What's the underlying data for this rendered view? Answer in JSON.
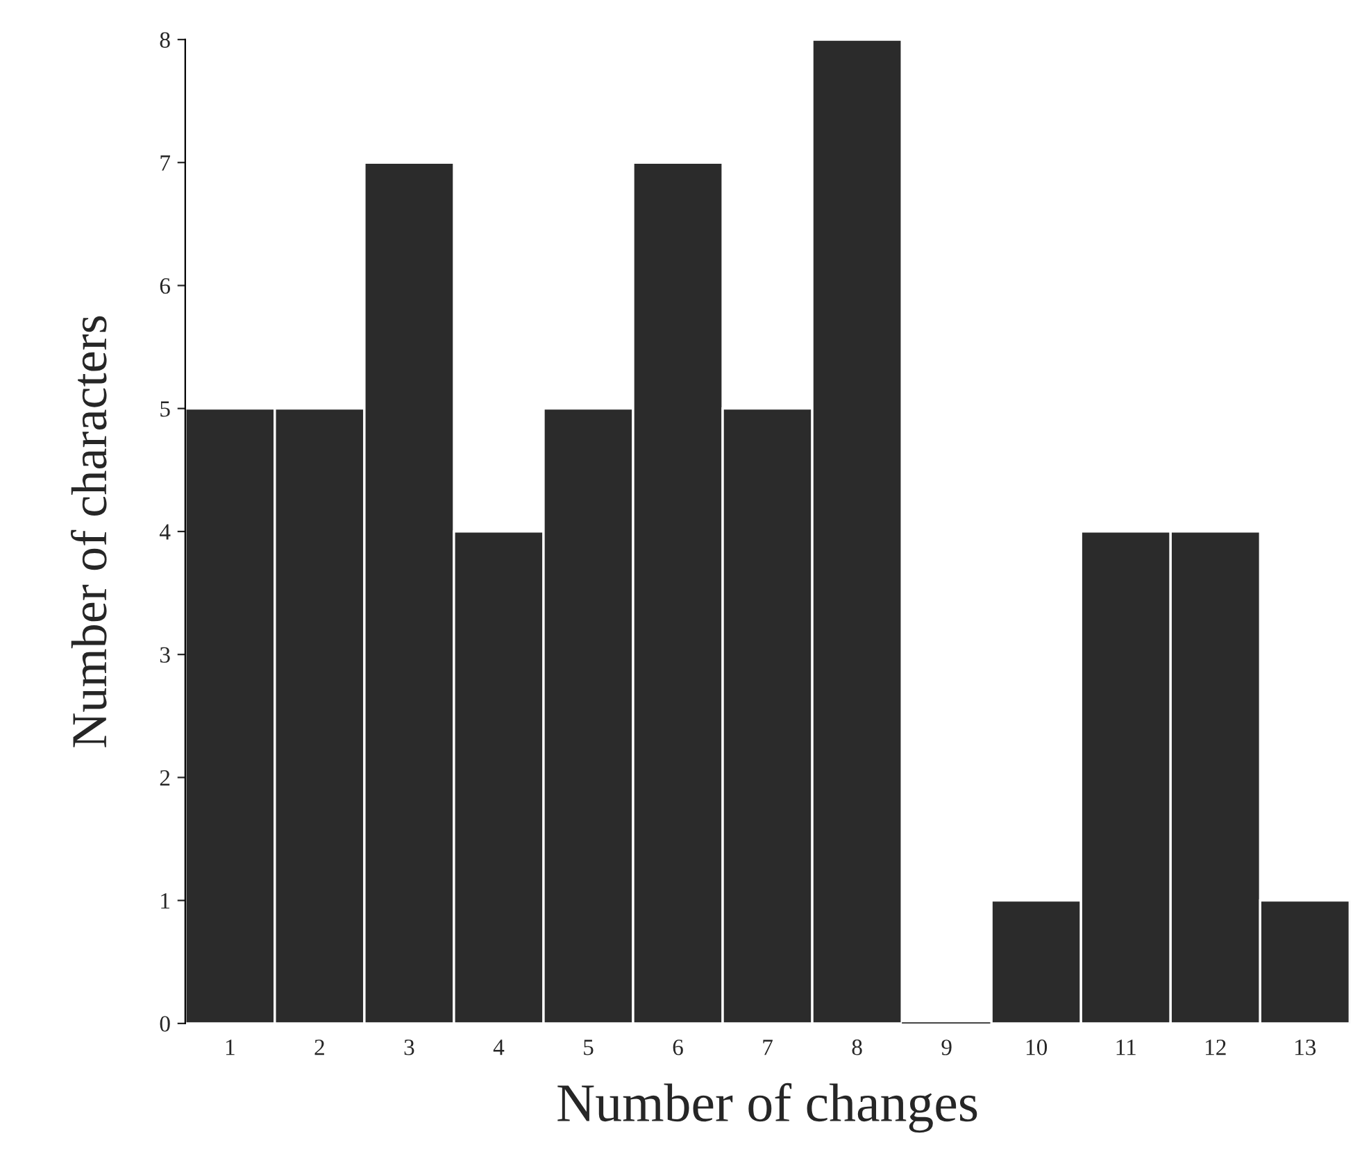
{
  "chart_data": {
    "type": "bar",
    "xlabel": "Number of changes",
    "ylabel": "Number of characters",
    "categories": [
      "1",
      "2",
      "3",
      "4",
      "5",
      "6",
      "7",
      "8",
      "9",
      "10",
      "11",
      "12",
      "13"
    ],
    "values": [
      5,
      5,
      7,
      4,
      5,
      7,
      5,
      8,
      0,
      1,
      4,
      4,
      1
    ],
    "color": "#2b2b2b",
    "ylim": [
      0,
      8
    ],
    "yticks": [
      0,
      1,
      2,
      3,
      4,
      5,
      6,
      7,
      8
    ],
    "grid": false,
    "legend": false
  }
}
